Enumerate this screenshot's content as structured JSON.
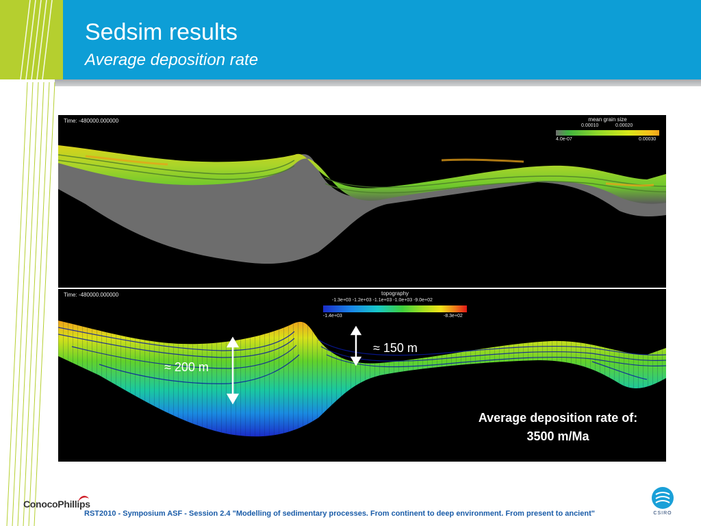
{
  "slide": {
    "title": "Sedsim results",
    "subtitle": "Average deposition rate"
  },
  "top_panel": {
    "time_label": "Time: -480000.000000",
    "legend": {
      "title": "mean grain size",
      "ticks_upper": [
        "0.00010",
        "0.00020"
      ],
      "min_label": "4.0e-07",
      "max_label": "0.00030"
    }
  },
  "bottom_panel": {
    "time_label": "Time: -480000.000000",
    "legend": {
      "title": "topography",
      "ticks_upper": "-1.3e+03  -1.2e+03  -1.1e+03  -1.0e+03  -9.0e+02",
      "min_label": "-1.4e+03",
      "max_label": "-8.3e+02"
    },
    "annotations": {
      "thickness_left": "≈ 200 m",
      "thickness_right": "≈ 150 m",
      "rate_line1": "Average deposition rate of:",
      "rate_line2": "3500 m/Ma"
    }
  },
  "footer": {
    "text": "RST2010 - Symposium ASF - Session 2.4 \"Modelling of sedimentary processes. From continent to deep environment. From present to ancient\"",
    "left_logo": "ConocoPhillips",
    "right_logo": "CSIRO"
  },
  "colors": {
    "header_blue": "#0d9ed6",
    "header_lime": "#b5cf2f",
    "footer_text": "#1a5ca8"
  }
}
